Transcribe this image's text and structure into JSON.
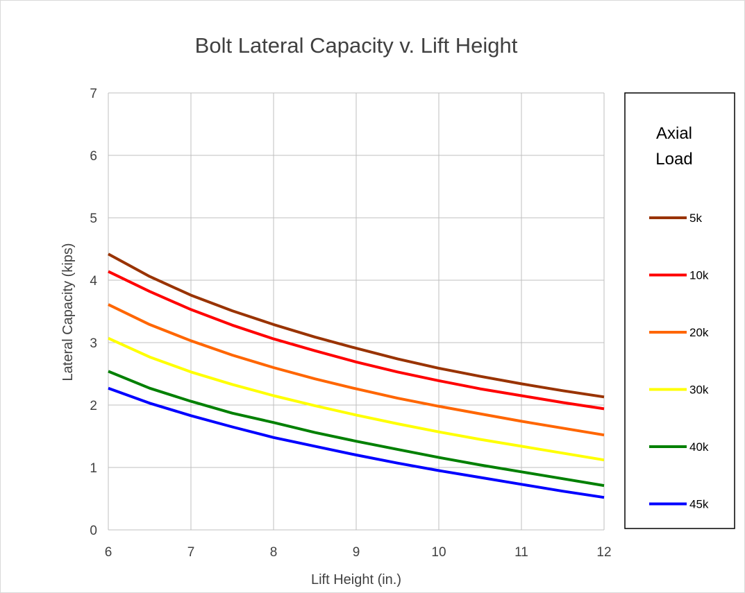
{
  "chart_data": {
    "type": "line",
    "title": "Bolt Lateral Capacity v. Lift Height",
    "xlabel": "Lift Height (in.)",
    "ylabel": "Lateral Capacity (kips)",
    "xlim": [
      6,
      12
    ],
    "ylim": [
      0,
      7
    ],
    "x_ticks": [
      6,
      7,
      8,
      9,
      10,
      11,
      12
    ],
    "y_ticks": [
      0,
      1,
      2,
      3,
      4,
      5,
      6,
      7
    ],
    "grid": true,
    "legend_position": "right",
    "legend_title_lines": [
      "Axial",
      "Load"
    ],
    "x": [
      6,
      6.5,
      7,
      7.5,
      8,
      8.5,
      9,
      9.5,
      10,
      10.5,
      11,
      11.5,
      12
    ],
    "series": [
      {
        "name": "5k",
        "color": "#993300",
        "values": [
          4.42,
          4.06,
          3.76,
          3.51,
          3.29,
          3.09,
          2.91,
          2.74,
          2.59,
          2.46,
          2.34,
          2.23,
          2.13
        ]
      },
      {
        "name": "10k",
        "color": "#ff0000",
        "values": [
          4.14,
          3.82,
          3.53,
          3.28,
          3.06,
          2.87,
          2.69,
          2.53,
          2.39,
          2.26,
          2.15,
          2.04,
          1.94
        ]
      },
      {
        "name": "20k",
        "color": "#ff6600",
        "values": [
          3.61,
          3.29,
          3.03,
          2.8,
          2.6,
          2.42,
          2.26,
          2.11,
          1.98,
          1.86,
          1.74,
          1.63,
          1.52
        ]
      },
      {
        "name": "30k",
        "color": "#ffff00",
        "values": [
          3.07,
          2.77,
          2.53,
          2.33,
          2.15,
          1.99,
          1.84,
          1.7,
          1.57,
          1.45,
          1.34,
          1.23,
          1.12
        ]
      },
      {
        "name": "40k",
        "color": "#008000",
        "values": [
          2.54,
          2.27,
          2.06,
          1.87,
          1.72,
          1.56,
          1.42,
          1.29,
          1.16,
          1.04,
          0.93,
          0.82,
          0.71
        ]
      },
      {
        "name": "45k",
        "color": "#0000ff",
        "values": [
          2.27,
          2.03,
          1.83,
          1.65,
          1.48,
          1.34,
          1.2,
          1.07,
          0.95,
          0.84,
          0.73,
          0.62,
          0.52
        ]
      }
    ]
  }
}
